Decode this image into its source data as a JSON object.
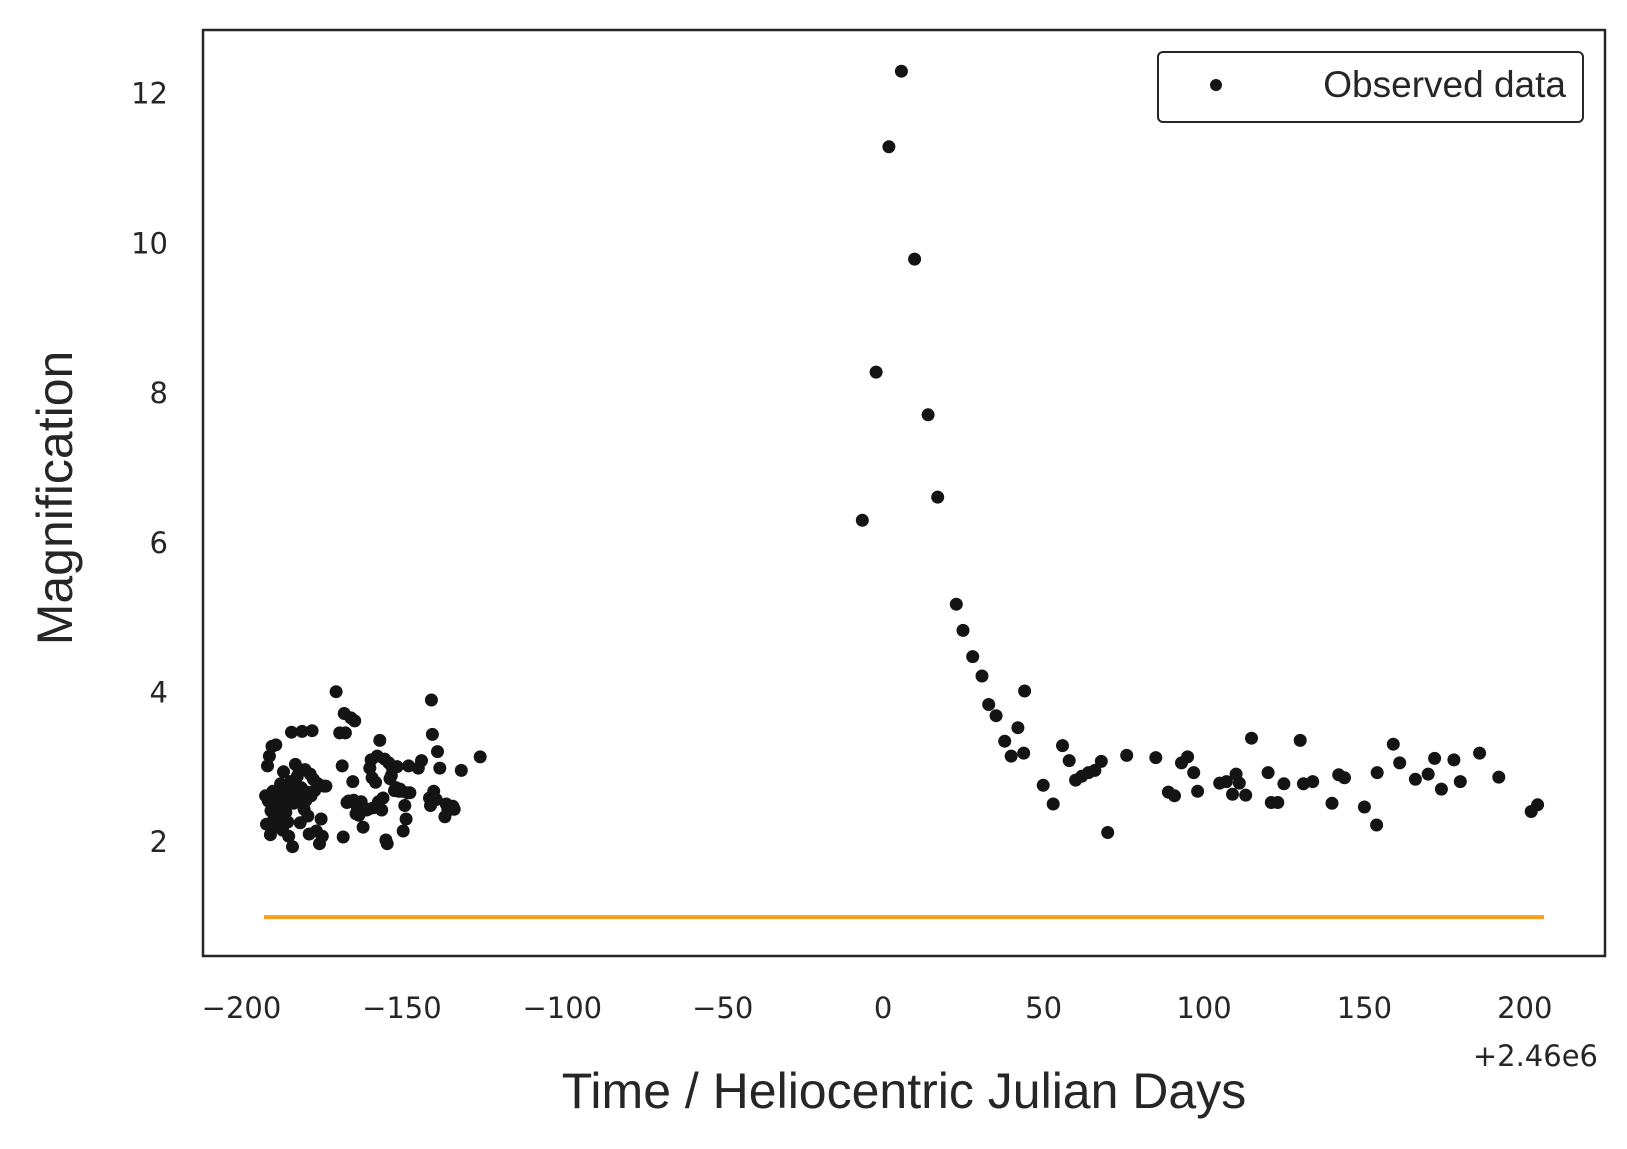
{
  "chart_data": {
    "type": "scatter",
    "title": "",
    "xlabel": "Time / Heliocentric Julian Days",
    "ylabel": "Magnification",
    "x_offset_label": "+2.46e6",
    "xlim": [
      -212,
      225
    ],
    "ylim": [
      0.48,
      12.85
    ],
    "xticks": [
      -200,
      -150,
      -100,
      -50,
      0,
      50,
      100,
      150,
      200
    ],
    "xtick_labels": [
      "−200",
      "−150",
      "−100",
      "−50",
      "0",
      "50",
      "100",
      "150",
      "200"
    ],
    "yticks": [
      2,
      4,
      6,
      8,
      10,
      12
    ],
    "ytick_labels": [
      "2",
      "4",
      "6",
      "8",
      "10",
      "12"
    ],
    "grid": false,
    "legend": {
      "position": "top-right",
      "entries": [
        "Observed data"
      ]
    },
    "colors": {
      "points": "#141414",
      "line": "#f5a01c",
      "frame": "#262626"
    },
    "series": [
      {
        "name": "Observed data",
        "kind": "scatter",
        "points": [
          [
            -192.5,
            2.62
          ],
          [
            -192.2,
            2.24
          ],
          [
            -191.9,
            3.02
          ],
          [
            -191.6,
            2.55
          ],
          [
            -191.3,
            3.15
          ],
          [
            -191.0,
            2.1
          ],
          [
            -190.8,
            2.42
          ],
          [
            -190.5,
            3.28
          ],
          [
            -190.2,
            2.68
          ],
          [
            -189.9,
            2.31
          ],
          [
            -189.6,
            2.54
          ],
          [
            -189.3,
            3.3
          ],
          [
            -189.0,
            2.21
          ],
          [
            -188.7,
            2.47
          ],
          [
            -188.4,
            2.6
          ],
          [
            -188.1,
            2.33
          ],
          [
            -187.8,
            2.78
          ],
          [
            -187.5,
            2.5
          ],
          [
            -187.2,
            2.16
          ],
          [
            -186.9,
            2.94
          ],
          [
            -186.5,
            2.66
          ],
          [
            -186.2,
            2.4
          ],
          [
            -185.9,
            2.73
          ],
          [
            -185.6,
            2.27
          ],
          [
            -185.3,
            2.08
          ],
          [
            -185.0,
            2.62
          ],
          [
            -184.7,
            2.81
          ],
          [
            -184.4,
            3.47
          ],
          [
            -184.1,
            1.94
          ],
          [
            -183.8,
            2.52
          ],
          [
            -183.5,
            2.77
          ],
          [
            -183.2,
            3.04
          ],
          [
            -182.9,
            2.69
          ],
          [
            -182.6,
            2.88
          ],
          [
            -182.3,
            2.58
          ],
          [
            -182.0,
            2.95
          ],
          [
            -181.7,
            2.26
          ],
          [
            -181.4,
            2.73
          ],
          [
            -181.1,
            3.48
          ],
          [
            -180.8,
            2.63
          ],
          [
            -180.5,
            2.44
          ],
          [
            -180.2,
            2.97
          ],
          [
            -179.9,
            2.56
          ],
          [
            -179.6,
            2.67
          ],
          [
            -179.3,
            2.35
          ],
          [
            -178.9,
            2.11
          ],
          [
            -178.6,
            2.91
          ],
          [
            -178.3,
            2.62
          ],
          [
            -178.0,
            3.49
          ],
          [
            -177.6,
            2.84
          ],
          [
            -177.2,
            2.69
          ],
          [
            -176.7,
            2.15
          ],
          [
            -176.2,
            2.78
          ],
          [
            -175.7,
            1.98
          ],
          [
            -175.2,
            2.31
          ],
          [
            -174.8,
            2.08
          ],
          [
            -174.3,
            2.75
          ],
          [
            -173.7,
            2.75
          ],
          [
            -170.5,
            4.01
          ],
          [
            -169.4,
            3.46
          ],
          [
            -168.6,
            3.02
          ],
          [
            -168.3,
            2.07
          ],
          [
            -168.0,
            3.72
          ],
          [
            -167.6,
            3.46
          ],
          [
            -167.1,
            2.53
          ],
          [
            -166.6,
            2.55
          ],
          [
            -165.9,
            3.66
          ],
          [
            -165.3,
            2.81
          ],
          [
            -165.0,
            2.56
          ],
          [
            -164.7,
            3.62
          ],
          [
            -164.3,
            2.38
          ],
          [
            -163.9,
            2.47
          ],
          [
            -163.4,
            2.36
          ],
          [
            -162.7,
            2.54
          ],
          [
            -162.1,
            2.2
          ],
          [
            -161.6,
            2.43
          ],
          [
            -161.0,
            2.43
          ],
          [
            -160.5,
            2.44
          ],
          [
            -160.0,
            2.99
          ],
          [
            -159.6,
            3.1
          ],
          [
            -159.3,
            2.86
          ],
          [
            -158.9,
            2.46
          ],
          [
            -158.2,
            2.8
          ],
          [
            -157.7,
            3.15
          ],
          [
            -157.3,
            2.54
          ],
          [
            -156.9,
            3.36
          ],
          [
            -156.3,
            2.43
          ],
          [
            -155.9,
            2.59
          ],
          [
            -155.4,
            3.11
          ],
          [
            -155.0,
            2.03
          ],
          [
            -154.6,
            1.98
          ],
          [
            -154.1,
            3.06
          ],
          [
            -153.7,
            2.85
          ],
          [
            -153.3,
            2.89
          ],
          [
            -152.9,
            2.98
          ],
          [
            -152.3,
            2.69
          ],
          [
            -151.9,
            2.73
          ],
          [
            -151.5,
            3.01
          ],
          [
            -151.0,
            2.68
          ],
          [
            -150.6,
            2.71
          ],
          [
            -150.1,
            2.68
          ],
          [
            -149.6,
            2.15
          ],
          [
            -149.1,
            2.49
          ],
          [
            -148.7,
            2.31
          ],
          [
            -148.3,
            2.66
          ],
          [
            -147.9,
            3.02
          ],
          [
            -147.5,
            2.66
          ],
          [
            -144.9,
            2.99
          ],
          [
            -143.9,
            3.09
          ],
          [
            -141.4,
            2.59
          ],
          [
            -141.1,
            2.49
          ],
          [
            -140.8,
            3.9
          ],
          [
            -140.5,
            3.44
          ],
          [
            -140.1,
            2.68
          ],
          [
            -139.3,
            2.57
          ],
          [
            -138.9,
            3.21
          ],
          [
            -138.2,
            2.99
          ],
          [
            -136.6,
            2.34
          ],
          [
            -136.2,
            2.51
          ],
          [
            -135.7,
            2.44
          ],
          [
            -135.2,
            2.47
          ],
          [
            -134.7,
            2.44
          ],
          [
            -134.1,
            2.48
          ],
          [
            -133.7,
            2.44
          ],
          [
            -131.5,
            2.96
          ],
          [
            -125.6,
            3.14
          ],
          [
            -6.5,
            6.3
          ],
          [
            -2.2,
            8.28
          ],
          [
            1.8,
            11.29
          ],
          [
            5.7,
            12.3
          ],
          [
            9.8,
            9.79
          ],
          [
            14.0,
            7.71
          ],
          [
            17.0,
            6.61
          ],
          [
            22.8,
            5.18
          ],
          [
            24.9,
            4.83
          ],
          [
            27.9,
            4.48
          ],
          [
            30.8,
            4.22
          ],
          [
            32.9,
            3.84
          ],
          [
            35.2,
            3.69
          ],
          [
            37.9,
            3.35
          ],
          [
            39.9,
            3.15
          ],
          [
            42.0,
            3.53
          ],
          [
            43.8,
            3.19
          ],
          [
            44.1,
            4.02
          ],
          [
            49.9,
            2.76
          ],
          [
            53.0,
            2.51
          ],
          [
            55.9,
            3.29
          ],
          [
            58.0,
            3.09
          ],
          [
            60.0,
            2.83
          ],
          [
            61.9,
            2.88
          ],
          [
            64.0,
            2.93
          ],
          [
            66.0,
            2.96
          ],
          [
            68.0,
            3.08
          ],
          [
            70.0,
            2.13
          ],
          [
            75.9,
            3.16
          ],
          [
            85.0,
            3.13
          ],
          [
            88.9,
            2.67
          ],
          [
            90.8,
            2.62
          ],
          [
            93.0,
            3.06
          ],
          [
            94.9,
            3.14
          ],
          [
            96.8,
            2.93
          ],
          [
            98.0,
            2.68
          ],
          [
            104.9,
            2.79
          ],
          [
            107.0,
            2.81
          ],
          [
            108.9,
            2.64
          ],
          [
            110.0,
            2.91
          ],
          [
            111.0,
            2.79
          ],
          [
            113.0,
            2.63
          ],
          [
            114.8,
            3.39
          ],
          [
            120.0,
            2.93
          ],
          [
            121.0,
            2.53
          ],
          [
            123.0,
            2.53
          ],
          [
            124.9,
            2.78
          ],
          [
            130.0,
            3.36
          ],
          [
            131.0,
            2.78
          ],
          [
            133.9,
            2.81
          ],
          [
            139.9,
            2.52
          ],
          [
            142.0,
            2.9
          ],
          [
            143.8,
            2.86
          ],
          [
            150.0,
            2.47
          ],
          [
            153.8,
            2.23
          ],
          [
            154.0,
            2.93
          ],
          [
            159.0,
            3.31
          ],
          [
            161.0,
            3.06
          ],
          [
            165.9,
            2.84
          ],
          [
            169.9,
            2.91
          ],
          [
            171.9,
            3.12
          ],
          [
            174.0,
            2.71
          ],
          [
            177.9,
            3.1
          ],
          [
            179.9,
            2.81
          ],
          [
            185.9,
            3.19
          ],
          [
            191.9,
            2.87
          ],
          [
            202.0,
            2.41
          ],
          [
            204.0,
            2.5
          ]
        ]
      },
      {
        "name": "",
        "kind": "line",
        "points": [
          [
            -193,
            1.0
          ],
          [
            206,
            1.0
          ]
        ]
      }
    ]
  }
}
